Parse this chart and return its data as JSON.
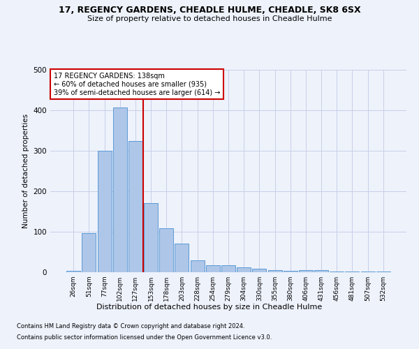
{
  "title1": "17, REGENCY GARDENS, CHEADLE HULME, CHEADLE, SK8 6SX",
  "title2": "Size of property relative to detached houses in Cheadle Hulme",
  "xlabel": "Distribution of detached houses by size in Cheadle Hulme",
  "ylabel": "Number of detached properties",
  "categories": [
    "26sqm",
    "51sqm",
    "77sqm",
    "102sqm",
    "127sqm",
    "153sqm",
    "178sqm",
    "203sqm",
    "228sqm",
    "254sqm",
    "279sqm",
    "304sqm",
    "330sqm",
    "355sqm",
    "380sqm",
    "406sqm",
    "431sqm",
    "456sqm",
    "481sqm",
    "507sqm",
    "532sqm"
  ],
  "values": [
    4,
    97,
    300,
    407,
    325,
    171,
    109,
    71,
    30,
    17,
    17,
    12,
    9,
    5,
    3,
    5,
    6,
    1,
    2,
    1,
    1
  ],
  "bar_color": "#aec6e8",
  "bar_edge_color": "#5b9bd5",
  "vline_color": "#cc0000",
  "annotation_box_edge": "#cc0000",
  "ylim": [
    0,
    500
  ],
  "property_label": "17 REGENCY GARDENS: 138sqm",
  "annotation_line1": "← 60% of detached houses are smaller (935)",
  "annotation_line2": "39% of semi-detached houses are larger (614) →",
  "footnote1": "Contains HM Land Registry data © Crown copyright and database right 2024.",
  "footnote2": "Contains public sector information licensed under the Open Government Licence v3.0.",
  "bg_color": "#eef2fb",
  "grid_color": "#c8cfe8",
  "vline_x": 4.5
}
